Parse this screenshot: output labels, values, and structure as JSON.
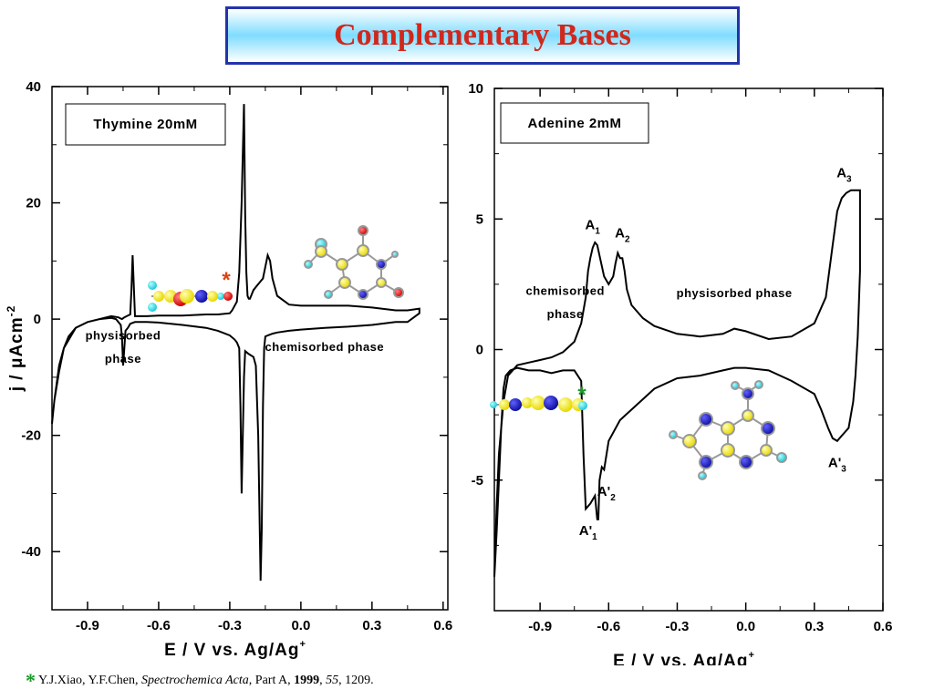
{
  "title": "Complementary Bases",
  "reference": {
    "star": "*",
    "authors": "Y.J.Xiao, Y.F.Chen, ",
    "journal": "Spectrochemica Acta",
    "part": ", Part A, ",
    "year": "1999",
    "sep": ", ",
    "volume": "55",
    "pages": ", 1209."
  },
  "colors": {
    "title_text": "#d0281c",
    "title_border": "#2233aa",
    "star_left": "#e04010",
    "star_right": "#1a9a2a",
    "curve": "#000000"
  },
  "chart_data": [
    {
      "type": "line",
      "legend": "Thymine 20mM",
      "ylabel": "j / μAcm",
      "ylabel_sup": "-2",
      "xlabel": "E / V vs. Ag/Ag",
      "xlabel_sup": "+",
      "xlim": [
        -1.05,
        0.62
      ],
      "ylim": [
        -50,
        40
      ],
      "xticks": [
        -0.9,
        -0.6,
        -0.3,
        0.0,
        0.3,
        0.6
      ],
      "xtick_labels": [
        "-0.9",
        "-0.6",
        "-0.3",
        "0.0",
        "0.3",
        "0.6"
      ],
      "yticks": [
        40,
        20,
        0,
        -20,
        -40
      ],
      "ytick_labels": [
        "40",
        "20",
        "0",
        "-20",
        "-40"
      ],
      "annotations": [
        {
          "text": "physisorbed",
          "x": -0.75,
          "y": -3.5
        },
        {
          "text": "phase",
          "x": -0.75,
          "y": -7.5
        },
        {
          "text": "chemisorbed phase",
          "x": 0.1,
          "y": -5.5
        }
      ],
      "star": {
        "text": "*",
        "x": -0.38,
        "y": 7
      },
      "series": [
        {
          "x": [
            -1.05,
            -1.04,
            -1.03,
            -1.02,
            -1.0,
            -0.98,
            -0.95,
            -0.9,
            -0.85,
            -0.8,
            -0.77,
            -0.755,
            -0.745,
            -0.735,
            -0.72,
            -0.715,
            -0.71,
            -0.7,
            -0.65,
            -0.6,
            -0.55,
            -0.5,
            -0.45,
            -0.4,
            -0.35,
            -0.3,
            -0.29,
            -0.27,
            -0.26,
            -0.25,
            -0.24,
            -0.235,
            -0.23,
            -0.225,
            -0.22,
            -0.215,
            -0.21,
            -0.2,
            -0.18,
            -0.16,
            -0.15,
            -0.14,
            -0.13,
            -0.12,
            -0.1,
            -0.05,
            0.0,
            0.1,
            0.2,
            0.3,
            0.4,
            0.45,
            0.5,
            0.5,
            0.45,
            0.4,
            0.3,
            0.2,
            0.1,
            0.0,
            -0.05,
            -0.1,
            -0.12,
            -0.14,
            -0.15,
            -0.155,
            -0.16,
            -0.165,
            -0.17,
            -0.18,
            -0.19,
            -0.2,
            -0.22,
            -0.235,
            -0.24,
            -0.245,
            -0.25,
            -0.255,
            -0.26,
            -0.27,
            -0.28,
            -0.3,
            -0.35,
            -0.4,
            -0.5,
            -0.6,
            -0.65,
            -0.7,
            -0.72,
            -0.73,
            -0.74,
            -0.745,
            -0.75,
            -0.755,
            -0.76,
            -0.78,
            -0.8,
            -0.85,
            -0.9,
            -0.95,
            -1.0,
            -1.02,
            -1.04,
            -1.05
          ],
          "y": [
            -18,
            -14,
            -11,
            -8,
            -5,
            -3,
            -1.5,
            -0.5,
            0,
            0.5,
            0.3,
            0,
            0.3,
            0.5,
            0.8,
            5,
            11,
            0.5,
            0.5,
            0.6,
            0.6,
            0.6,
            0.7,
            0.8,
            0.8,
            1.0,
            1.5,
            3,
            8,
            20,
            37,
            18,
            8,
            4,
            3.5,
            3.5,
            4,
            5,
            6,
            7,
            9,
            11,
            10,
            7,
            4,
            2.5,
            2.3,
            2.3,
            2.3,
            2.0,
            1.5,
            1.5,
            1.8,
            1.0,
            -0.5,
            -0.5,
            -1,
            -1.3,
            -1.5,
            -1.8,
            -2.0,
            -2.3,
            -2.5,
            -2.8,
            -3.0,
            -5,
            -15,
            -36,
            -45,
            -20,
            -8,
            -6.5,
            -6,
            -5.5,
            -10,
            -20,
            -30,
            -15,
            -5,
            -4,
            -3.5,
            -2.8,
            -2.0,
            -1.5,
            -1.0,
            -0.6,
            -0.5,
            -0.5,
            -0.8,
            -1.5,
            -2,
            -5,
            -8,
            -3,
            -1,
            0,
            0.2,
            0,
            -0.5,
            -1.5,
            -5,
            -9,
            -14,
            -18
          ]
        }
      ]
    },
    {
      "type": "line",
      "legend": "Adenine 2mM",
      "xlabel": "E / V vs. Ag/Ag",
      "xlabel_sup": "+",
      "xlim": [
        -1.1,
        0.6
      ],
      "ylim": [
        -10,
        10
      ],
      "xticks": [
        -0.9,
        -0.6,
        -0.3,
        0.0,
        0.3,
        0.6
      ],
      "xtick_labels": [
        "-0.9",
        "-0.6",
        "-0.3",
        "0.0",
        "0.3",
        "0.6"
      ],
      "yticks": [
        10,
        5,
        0,
        -5
      ],
      "ytick_labels": [
        "10",
        "5",
        "0",
        "-5"
      ],
      "annotations": [
        {
          "text": "chemisorbed",
          "x": -0.79,
          "y": 2.1
        },
        {
          "text": "phase",
          "x": -0.79,
          "y": 1.2
        },
        {
          "text": "physisorbed phase",
          "x": -0.05,
          "y": 2.0
        }
      ],
      "peaks": [
        {
          "label": "A",
          "sub": "1",
          "x": -0.67,
          "y": 4.6
        },
        {
          "label": "A",
          "sub": "2",
          "x": -0.54,
          "y": 4.3
        },
        {
          "label": "A",
          "sub": "3",
          "x": 0.43,
          "y": 6.6
        },
        {
          "label": "A'",
          "sub": "1",
          "x": -0.69,
          "y": -7.1
        },
        {
          "label": "A'",
          "sub": "2",
          "x": -0.61,
          "y": -5.6
        },
        {
          "label": "A'",
          "sub": "3",
          "x": 0.4,
          "y": -4.5
        }
      ],
      "star": {
        "text": "*",
        "x": -0.7,
        "y": -1.65
      },
      "series": [
        {
          "x": [
            -1.1,
            -1.09,
            -1.08,
            -1.06,
            -1.04,
            -1.0,
            -0.95,
            -0.9,
            -0.85,
            -0.8,
            -0.75,
            -0.72,
            -0.7,
            -0.69,
            -0.68,
            -0.67,
            -0.66,
            -0.65,
            -0.64,
            -0.62,
            -0.6,
            -0.58,
            -0.57,
            -0.56,
            -0.55,
            -0.54,
            -0.53,
            -0.52,
            -0.5,
            -0.45,
            -0.4,
            -0.3,
            -0.2,
            -0.1,
            -0.05,
            0.0,
            0.1,
            0.2,
            0.3,
            0.35,
            0.38,
            0.4,
            0.42,
            0.44,
            0.46,
            0.5,
            0.5,
            0.49,
            0.48,
            0.47,
            0.45,
            0.42,
            0.4,
            0.38,
            0.36,
            0.33,
            0.3,
            0.2,
            0.1,
            0.0,
            -0.05,
            -0.1,
            -0.2,
            -0.3,
            -0.4,
            -0.5,
            -0.55,
            -0.6,
            -0.62,
            -0.63,
            -0.64,
            -0.645,
            -0.65,
            -0.66,
            -0.68,
            -0.7,
            -0.71,
            -0.72,
            -0.75,
            -0.8,
            -0.85,
            -0.9,
            -0.95,
            -1.0,
            -1.03,
            -1.05,
            -1.06,
            -1.07,
            -1.08,
            -1.09,
            -1.1
          ],
          "y": [
            -8.7,
            -6,
            -4,
            -2,
            -1,
            -0.6,
            -0.5,
            -0.4,
            -0.3,
            -0.1,
            0.3,
            1.0,
            2.0,
            3.0,
            3.5,
            3.9,
            4.1,
            4.0,
            3.6,
            2.8,
            2.5,
            2.8,
            3.3,
            3.7,
            3.5,
            3.5,
            3.0,
            2.3,
            1.7,
            1.2,
            0.9,
            0.6,
            0.5,
            0.6,
            0.8,
            0.7,
            0.4,
            0.5,
            1.0,
            2.0,
            4.0,
            5.3,
            5.8,
            6.0,
            6.1,
            6.1,
            3.0,
            0.5,
            -1.0,
            -2.0,
            -3.0,
            -3.3,
            -3.5,
            -3.4,
            -3.0,
            -2.3,
            -1.7,
            -1.2,
            -0.8,
            -0.7,
            -0.7,
            -0.8,
            -1.0,
            -1.1,
            -1.5,
            -2.3,
            -2.7,
            -3.5,
            -4.6,
            -4.5,
            -5.0,
            -6.5,
            -6.5,
            -5.6,
            -5.9,
            -6.1,
            -4.0,
            -1.2,
            -0.8,
            -0.8,
            -0.9,
            -0.8,
            -0.8,
            -0.7,
            -0.8,
            -1.0,
            -1.5,
            -3.0,
            -5.0,
            -7.0,
            -8.7
          ]
        }
      ]
    }
  ]
}
